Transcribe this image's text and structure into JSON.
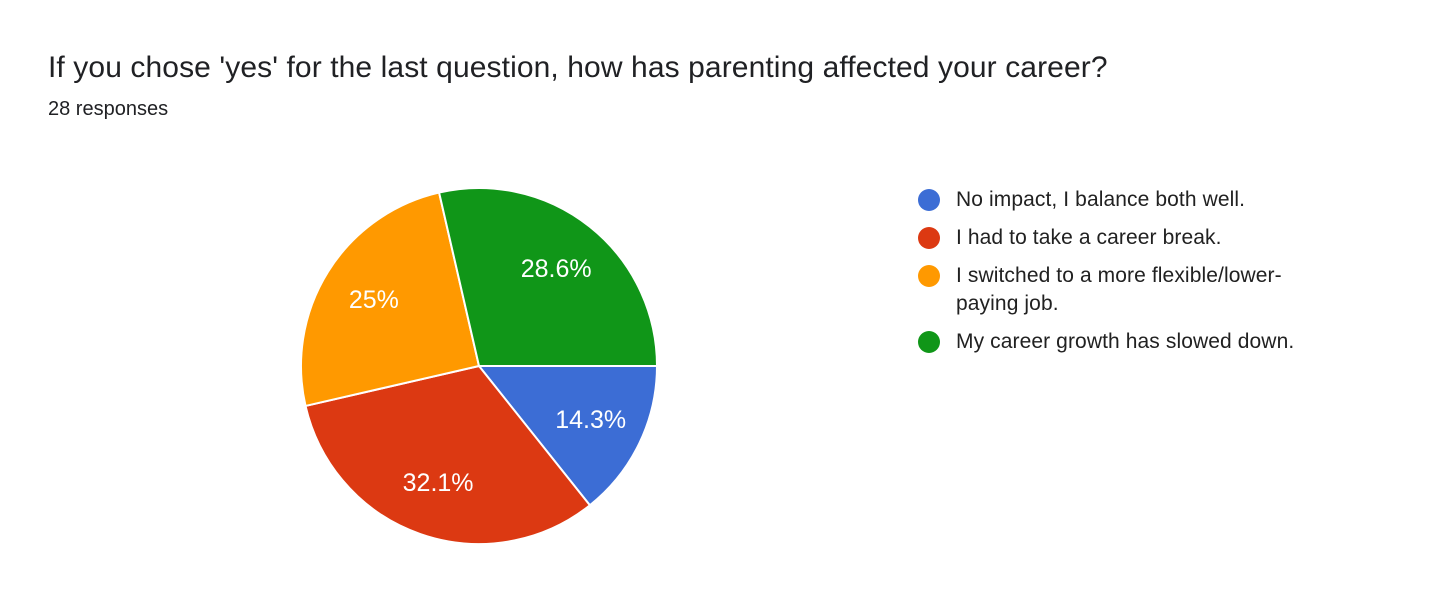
{
  "page": {
    "background_color": "#ffffff"
  },
  "header": {
    "title": "If you chose 'yes' for the last question, how has parenting affected your career?",
    "responses_label": "28 responses"
  },
  "chart_data": {
    "type": "pie",
    "title": "If you chose 'yes' for the last question, how has parenting affected your career?",
    "subtitle": "28 responses",
    "total_responses": 28,
    "legend_position": "right",
    "start_angle_deg_clockwise_from_top": 90,
    "direction": "clockwise",
    "slice_border_color": "#ffffff",
    "slice_label_color": "#ffffff",
    "series": [
      {
        "label": "No impact, I balance both well.",
        "percent": 14.3,
        "display_label": "14.3%",
        "color": "#3c6dd5"
      },
      {
        "label": "I had to take a career break.",
        "percent": 32.1,
        "display_label": "32.1%",
        "color": "#dc3912"
      },
      {
        "label": "I switched to a more flexible/lower-paying job.",
        "percent": 25,
        "display_label": "25%",
        "color": "#ff9900"
      },
      {
        "label": "My career growth has slowed down.",
        "percent": 28.6,
        "display_label": "28.6%",
        "color": "#109618"
      }
    ]
  },
  "colors": {
    "title_text": "#202124",
    "legend_text": "#212121"
  }
}
